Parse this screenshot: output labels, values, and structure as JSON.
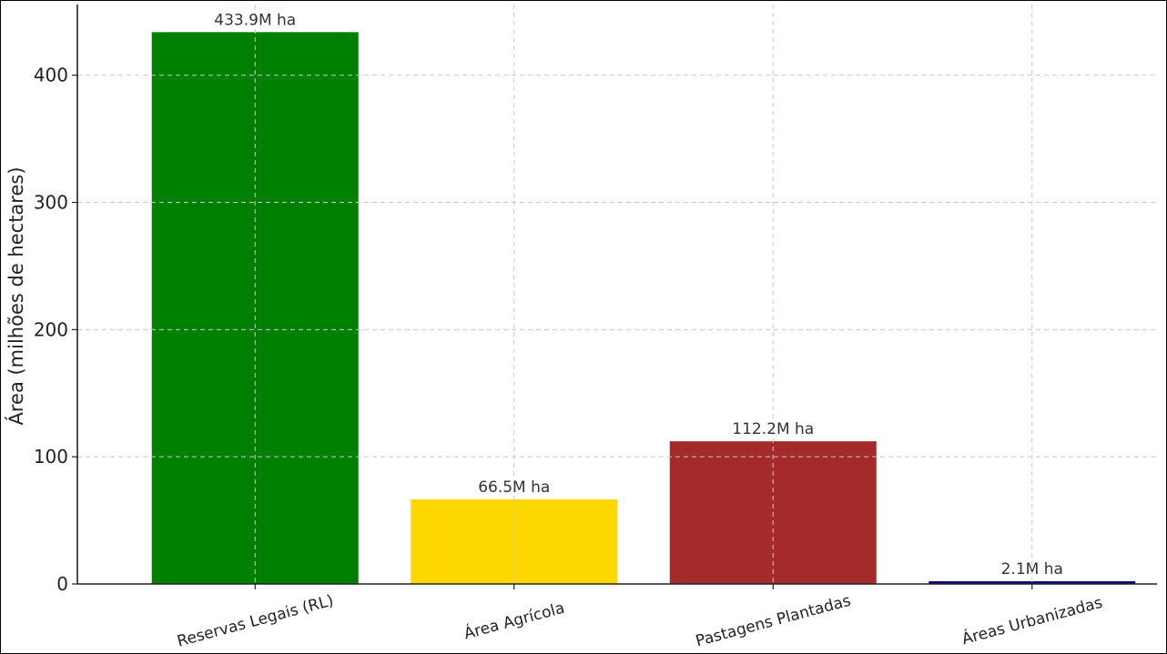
{
  "chart_data": {
    "type": "bar",
    "title": "",
    "xlabel": "",
    "ylabel": "Área (milhões de hectares)",
    "categories": [
      "Reservas Legais (RL)",
      "Área Agrícola",
      "Pastagens Plantadas",
      "Áreas Urbanizadas"
    ],
    "values": [
      433.9,
      66.5,
      112.2,
      2.1
    ],
    "data_labels": [
      "433.9M ha",
      "66.5M ha",
      "112.2M ha",
      "2.1M ha"
    ],
    "colors": [
      "#008000",
      "#FFD700",
      "#A52A2A",
      "#000080"
    ],
    "ylim": [
      0,
      455.6
    ],
    "yticks": [
      0,
      100,
      200,
      300,
      400
    ],
    "ytick_labels": [
      "0",
      "100",
      "200",
      "300",
      "400"
    ],
    "grid": true,
    "legend": "none"
  }
}
